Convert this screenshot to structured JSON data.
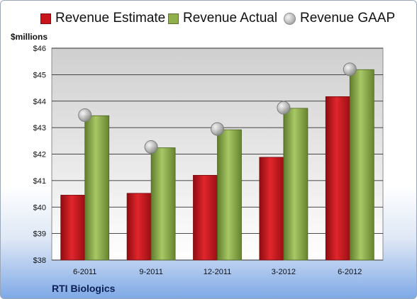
{
  "chart_data": {
    "type": "bar",
    "title": "",
    "ylabel": "$millions",
    "xlabel": "",
    "company": "RTI Biologics",
    "categories": [
      "6-2011",
      "9-2011",
      "12-2011",
      "3-2012",
      "6-2012"
    ],
    "ylim": [
      38,
      46
    ],
    "yticks": [
      "$38",
      "$39",
      "$40",
      "$41",
      "$42",
      "$43",
      "$44",
      "$45",
      "$46"
    ],
    "ytick_values": [
      38,
      39,
      40,
      41,
      42,
      43,
      44,
      45,
      46
    ],
    "legend_position": "top",
    "grid": true,
    "series": [
      {
        "name": "Revenue Estimate",
        "type": "bar",
        "color": "#c8151b",
        "values": [
          40.45,
          40.52,
          41.2,
          41.88,
          44.17
        ]
      },
      {
        "name": "Revenue Actual",
        "type": "bar",
        "color": "#8fb04a",
        "values": [
          43.45,
          42.24,
          42.92,
          43.73,
          45.19
        ]
      },
      {
        "name": "Revenue GAAP",
        "type": "marker",
        "color": "#b0b0b0",
        "values": [
          43.47,
          42.27,
          42.95,
          43.75,
          45.2
        ]
      }
    ]
  }
}
